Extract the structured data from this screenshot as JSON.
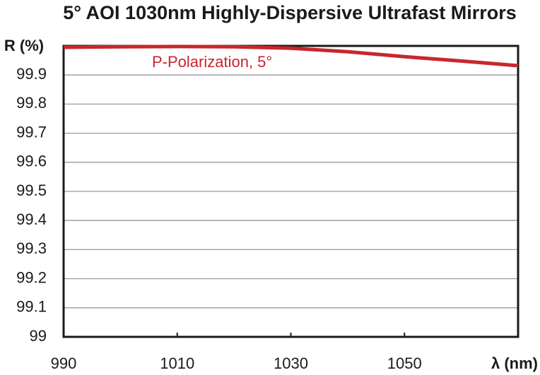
{
  "chart_data": {
    "type": "line",
    "title": "5° AOI 1030nm Highly-Dispersive Ultrafast Mirrors",
    "y_label": "R (%)",
    "x_label": "λ (nm)",
    "annotation": "P-Polarization, 5°",
    "x": [
      990,
      1000,
      1010,
      1020,
      1030,
      1040,
      1050,
      1060,
      1070
    ],
    "series": [
      {
        "name": "P-Polarization, 5°",
        "color": "#c8262e",
        "values": [
          99.995,
          99.997,
          99.998,
          99.997,
          99.992,
          99.98,
          99.963,
          99.948,
          99.932
        ]
      }
    ],
    "xlim": [
      990,
      1070
    ],
    "xticks": [
      990,
      1010,
      1030,
      1050
    ],
    "ylim": [
      99,
      100
    ],
    "yticks": [
      99,
      99.1,
      99.2,
      99.3,
      99.4,
      99.5,
      99.6,
      99.7,
      99.8,
      99.9
    ],
    "grid": true
  }
}
